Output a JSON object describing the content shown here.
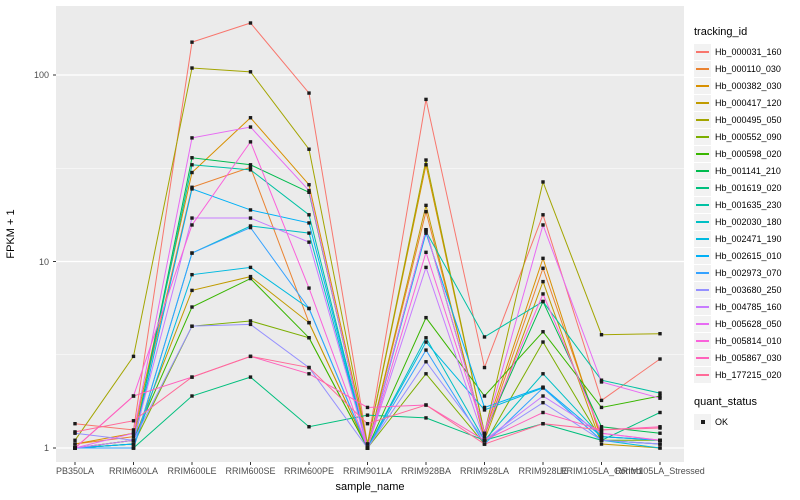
{
  "legend": {
    "tracking_title": "tracking_id",
    "quant_title": "quant_status",
    "quant_item": "OK"
  },
  "chart_data": {
    "type": "line",
    "title": "",
    "xlabel": "sample_name",
    "ylabel": "FPKM + 1",
    "yscale": "log10",
    "ylim": [
      0.85,
      235
    ],
    "y_ticks": [
      1,
      10,
      100
    ],
    "y_minor_ticks": [
      3.162,
      31.62
    ],
    "grid": true,
    "legend_position": "right",
    "marker": "black-square",
    "marker_legend": "OK",
    "x": [
      "PB350LA",
      "RRIM600LA",
      "RRIM600LE",
      "RRIM600SE",
      "RRIM600PE",
      "RRIM901LA",
      "RRIM928BA",
      "RRIM928LA",
      "RRIM928LE",
      "RRIM105LA_Control",
      "RRIM105LA_Stressed"
    ],
    "series": [
      {
        "name": "Hb_000031_160",
        "color": "#F8766D",
        "values": [
          1.35,
          1.25,
          150,
          190,
          80,
          1.05,
          74,
          2.7,
          17.8,
          1.8,
          3.0
        ]
      },
      {
        "name": "Hb_000110_030",
        "color": "#EA8331",
        "values": [
          1.05,
          1.15,
          25,
          32,
          4.7,
          1.0,
          18.5,
          1.15,
          9.2,
          1.15,
          1.1
        ]
      },
      {
        "name": "Hb_000382_030",
        "color": "#D89000",
        "values": [
          1.05,
          1.2,
          30,
          59,
          25.8,
          1.05,
          33,
          1.2,
          10.4,
          1.1,
          1.05
        ]
      },
      {
        "name": "Hb_000417_120",
        "color": "#C09B00",
        "values": [
          1.0,
          1.1,
          7.0,
          8.3,
          4.7,
          1.0,
          20,
          1.1,
          7.8,
          1.05,
          1.0
        ]
      },
      {
        "name": "Hb_000495_050",
        "color": "#A3A500",
        "values": [
          1.1,
          3.1,
          109,
          104,
          40,
          1.05,
          35,
          1.2,
          26.7,
          4.05,
          4.1
        ]
      },
      {
        "name": "Hb_000552_090",
        "color": "#7CAE00",
        "values": [
          1.0,
          1.05,
          4.5,
          4.8,
          3.9,
          1.0,
          2.5,
          1.05,
          3.7,
          1.1,
          1.1
        ]
      },
      {
        "name": "Hb_000598_020",
        "color": "#39B600",
        "values": [
          1.0,
          1.1,
          5.7,
          8.1,
          3.9,
          1.0,
          5.0,
          1.9,
          4.2,
          1.65,
          1.9
        ]
      },
      {
        "name": "Hb_001141_210",
        "color": "#00BB4E",
        "values": [
          1.0,
          1.05,
          36,
          33,
          23.5,
          1.0,
          14.8,
          1.2,
          6.1,
          1.3,
          1.2
        ]
      },
      {
        "name": "Hb_001619_020",
        "color": "#00BF7D",
        "values": [
          1.0,
          1.0,
          1.9,
          2.4,
          1.3,
          1.5,
          1.45,
          1.1,
          1.35,
          1.1,
          1.55
        ]
      },
      {
        "name": "Hb_001635_230",
        "color": "#00C1A3",
        "values": [
          1.0,
          1.05,
          33,
          31,
          17.8,
          1.0,
          14.5,
          3.94,
          6.1,
          2.31,
          1.97
        ]
      },
      {
        "name": "Hb_002030_180",
        "color": "#00BFC4",
        "values": [
          1.0,
          1.0,
          11.1,
          15.5,
          14.2,
          1.0,
          3.9,
          1.1,
          2.5,
          1.15,
          1.1
        ]
      },
      {
        "name": "Hb_002471_190",
        "color": "#00BAE0",
        "values": [
          1.0,
          1.0,
          8.5,
          9.3,
          5.6,
          1.0,
          3.7,
          1.6,
          2.1,
          1.1,
          1.0
        ]
      },
      {
        "name": "Hb_002615_010",
        "color": "#00B0F6",
        "values": [
          1.0,
          1.05,
          24.5,
          18.9,
          16.1,
          1.0,
          14.2,
          1.65,
          2.12,
          1.15,
          1.1
        ]
      },
      {
        "name": "Hb_002973_070",
        "color": "#35A2FF",
        "values": [
          1.0,
          1.0,
          11.1,
          15.2,
          5.6,
          1.0,
          3.35,
          1.05,
          2.1,
          1.1,
          1.05
        ]
      },
      {
        "name": "Hb_003680_250",
        "color": "#9590FF",
        "values": [
          1.2,
          1.1,
          4.5,
          4.6,
          2.7,
          1.0,
          2.9,
          1.1,
          1.75,
          1.1,
          1.05
        ]
      },
      {
        "name": "Hb_004785_160",
        "color": "#C77CFF",
        "values": [
          1.0,
          1.1,
          17.1,
          17.1,
          12.7,
          1.0,
          9.3,
          1.1,
          1.9,
          1.2,
          1.1
        ]
      },
      {
        "name": "Hb_005628_050",
        "color": "#E76BF3",
        "values": [
          1.0,
          1.2,
          46,
          52.6,
          24,
          1.0,
          14.8,
          1.2,
          15.7,
          2.26,
          1.85
        ]
      },
      {
        "name": "Hb_005814_010",
        "color": "#FA62DB",
        "values": [
          1.0,
          1.9,
          15.7,
          43.8,
          7.2,
          1.0,
          11.2,
          1.2,
          6.7,
          1.2,
          1.1
        ]
      },
      {
        "name": "Hb_005867_030",
        "color": "#FF62BC",
        "values": [
          1.0,
          1.9,
          2.4,
          3.1,
          2.5,
          1.65,
          1.7,
          1.1,
          1.55,
          1.25,
          1.3
        ]
      },
      {
        "name": "Hb_177215_020",
        "color": "#FF6A98",
        "values": [
          1.22,
          1.4,
          2.4,
          3.1,
          2.7,
          1.35,
          1.7,
          1.05,
          1.35,
          1.25,
          1.28
        ]
      }
    ],
    "panel_bg": "#EBEBEB",
    "grid_color": "#FFFFFF",
    "axis_text_color": "#4D4D4D",
    "tick_color": "#333333",
    "point_color": "#1A1A1A"
  }
}
